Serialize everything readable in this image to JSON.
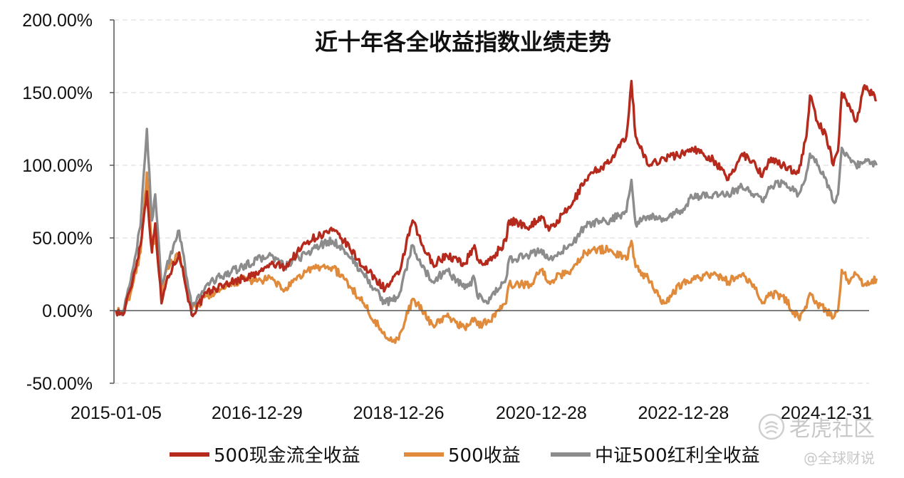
{
  "chart_data": {
    "type": "line",
    "title": "近十年各全收益指数业绩走势",
    "xlabel": "",
    "ylabel": "",
    "x_tick_labels": [
      "2015-01-05",
      "2016-12-29",
      "2018-12-26",
      "2020-12-28",
      "2022-12-28",
      "2024-12-31"
    ],
    "y_tick_labels": [
      "-50.00%",
      "0.00%",
      "50.00%",
      "100.00%",
      "150.00%",
      "200.00%"
    ],
    "ylim": [
      -50,
      200
    ],
    "y_unit": "%",
    "grid": "horizontal dashed",
    "legend_position": "bottom",
    "series": [
      {
        "name": "500现金流全收益",
        "color": "#b52a1c",
        "points": [
          [
            "2015-01-05",
            0
          ],
          [
            "2015-02-10",
            -3
          ],
          [
            "2015-03-20",
            15
          ],
          [
            "2015-05-10",
            45
          ],
          [
            "2015-06-12",
            82
          ],
          [
            "2015-07-08",
            40
          ],
          [
            "2015-07-25",
            60
          ],
          [
            "2015-08-26",
            5
          ],
          [
            "2015-09-20",
            20
          ],
          [
            "2015-11-25",
            40
          ],
          [
            "2016-01-28",
            -3
          ],
          [
            "2016-04-15",
            12
          ],
          [
            "2016-07-15",
            18
          ],
          [
            "2016-10-15",
            22
          ],
          [
            "2016-12-29",
            25
          ],
          [
            "2017-03-10",
            32
          ],
          [
            "2017-05-20",
            30
          ],
          [
            "2017-09-15",
            48
          ],
          [
            "2017-11-20",
            52
          ],
          [
            "2018-01-20",
            55
          ],
          [
            "2018-03-20",
            48
          ],
          [
            "2018-06-30",
            30
          ],
          [
            "2018-10-18",
            15
          ],
          [
            "2018-12-26",
            25
          ],
          [
            "2019-03-08",
            62
          ],
          [
            "2019-04-25",
            45
          ],
          [
            "2019-06-20",
            32
          ],
          [
            "2019-08-30",
            38
          ],
          [
            "2019-11-30",
            32
          ],
          [
            "2020-01-20",
            45
          ],
          [
            "2020-02-03",
            35
          ],
          [
            "2020-03-25",
            32
          ],
          [
            "2020-06-30",
            48
          ],
          [
            "2020-07-15",
            62
          ],
          [
            "2020-10-30",
            58
          ],
          [
            "2020-12-28",
            65
          ],
          [
            "2021-02-05",
            55
          ],
          [
            "2021-05-30",
            72
          ],
          [
            "2021-08-10",
            90
          ],
          [
            "2021-09-15",
            95
          ],
          [
            "2021-12-15",
            102
          ],
          [
            "2022-03-10",
            120
          ],
          [
            "2022-04-05",
            158
          ],
          [
            "2022-04-26",
            120
          ],
          [
            "2022-06-30",
            100
          ],
          [
            "2022-09-20",
            105
          ],
          [
            "2022-12-28",
            108
          ],
          [
            "2023-02-10",
            112
          ],
          [
            "2023-05-30",
            104
          ],
          [
            "2023-08-15",
            90
          ],
          [
            "2023-10-25",
            108
          ],
          [
            "2023-12-30",
            102
          ],
          [
            "2024-02-05",
            92
          ],
          [
            "2024-03-10",
            104
          ],
          [
            "2024-05-20",
            100
          ],
          [
            "2024-08-10",
            95
          ],
          [
            "2024-09-20",
            120
          ],
          [
            "2024-10-08",
            148
          ],
          [
            "2024-11-15",
            130
          ],
          [
            "2024-12-31",
            120
          ],
          [
            "2025-02-05",
            100
          ],
          [
            "2025-03-01",
            110
          ],
          [
            "2025-03-20",
            150
          ],
          [
            "2025-05-01",
            140
          ],
          [
            "2025-06-01",
            130
          ],
          [
            "2025-07-15",
            155
          ],
          [
            "2025-09-15",
            145
          ]
        ]
      },
      {
        "name": "500收益",
        "color": "#e08a3c",
        "points": [
          [
            "2015-01-05",
            0
          ],
          [
            "2015-02-10",
            -3
          ],
          [
            "2015-03-20",
            12
          ],
          [
            "2015-05-10",
            40
          ],
          [
            "2015-06-12",
            95
          ],
          [
            "2015-07-08",
            45
          ],
          [
            "2015-07-25",
            50
          ],
          [
            "2015-08-26",
            10
          ],
          [
            "2015-09-20",
            28
          ],
          [
            "2015-11-25",
            40
          ],
          [
            "2016-01-28",
            0
          ],
          [
            "2016-04-15",
            10
          ],
          [
            "2016-07-15",
            15
          ],
          [
            "2016-10-15",
            22
          ],
          [
            "2016-12-29",
            20
          ],
          [
            "2017-03-10",
            22
          ],
          [
            "2017-05-20",
            14
          ],
          [
            "2017-09-15",
            28
          ],
          [
            "2017-11-20",
            30
          ],
          [
            "2018-01-20",
            30
          ],
          [
            "2018-03-20",
            22
          ],
          [
            "2018-06-30",
            5
          ],
          [
            "2018-10-18",
            -18
          ],
          [
            "2018-12-26",
            -20
          ],
          [
            "2019-03-08",
            8
          ],
          [
            "2019-04-25",
            0
          ],
          [
            "2019-06-20",
            -10
          ],
          [
            "2019-08-30",
            -4
          ],
          [
            "2019-11-30",
            -12
          ],
          [
            "2020-01-20",
            -5
          ],
          [
            "2020-02-03",
            -10
          ],
          [
            "2020-03-25",
            -8
          ],
          [
            "2020-06-30",
            5
          ],
          [
            "2020-07-15",
            18
          ],
          [
            "2020-10-30",
            18
          ],
          [
            "2020-12-28",
            28
          ],
          [
            "2021-02-05",
            20
          ],
          [
            "2021-05-30",
            28
          ],
          [
            "2021-08-10",
            40
          ],
          [
            "2021-09-15",
            42
          ],
          [
            "2021-12-15",
            42
          ],
          [
            "2022-03-10",
            35
          ],
          [
            "2022-04-05",
            48
          ],
          [
            "2022-04-26",
            30
          ],
          [
            "2022-06-30",
            22
          ],
          [
            "2022-09-20",
            5
          ],
          [
            "2022-12-28",
            20
          ],
          [
            "2023-02-10",
            22
          ],
          [
            "2023-05-30",
            25
          ],
          [
            "2023-08-15",
            20
          ],
          [
            "2023-10-25",
            25
          ],
          [
            "2023-12-30",
            15
          ],
          [
            "2024-02-05",
            5
          ],
          [
            "2024-03-10",
            12
          ],
          [
            "2024-05-20",
            10
          ],
          [
            "2024-08-10",
            -5
          ],
          [
            "2024-09-20",
            2
          ],
          [
            "2024-10-08",
            12
          ],
          [
            "2024-11-15",
            5
          ],
          [
            "2024-12-31",
            0
          ],
          [
            "2025-02-05",
            -5
          ],
          [
            "2025-03-01",
            0
          ],
          [
            "2025-03-20",
            28
          ],
          [
            "2025-05-01",
            20
          ],
          [
            "2025-06-01",
            25
          ],
          [
            "2025-07-15",
            18
          ],
          [
            "2025-09-15",
            22
          ]
        ]
      },
      {
        "name": "中证500红利全收益",
        "color": "#8c8c8c",
        "points": [
          [
            "2015-01-05",
            0
          ],
          [
            "2015-02-10",
            -2
          ],
          [
            "2015-03-20",
            20
          ],
          [
            "2015-05-10",
            58
          ],
          [
            "2015-06-12",
            125
          ],
          [
            "2015-07-08",
            62
          ],
          [
            "2015-07-25",
            80
          ],
          [
            "2015-08-26",
            18
          ],
          [
            "2015-09-20",
            30
          ],
          [
            "2015-11-25",
            55
          ],
          [
            "2016-01-28",
            2
          ],
          [
            "2016-04-15",
            18
          ],
          [
            "2016-07-15",
            25
          ],
          [
            "2016-10-15",
            30
          ],
          [
            "2016-12-29",
            35
          ],
          [
            "2017-03-10",
            38
          ],
          [
            "2017-05-20",
            30
          ],
          [
            "2017-09-15",
            40
          ],
          [
            "2017-11-20",
            45
          ],
          [
            "2018-01-20",
            48
          ],
          [
            "2018-03-20",
            42
          ],
          [
            "2018-06-30",
            25
          ],
          [
            "2018-10-18",
            5
          ],
          [
            "2018-12-26",
            10
          ],
          [
            "2019-03-08",
            45
          ],
          [
            "2019-04-25",
            30
          ],
          [
            "2019-06-20",
            20
          ],
          [
            "2019-08-30",
            28
          ],
          [
            "2019-11-30",
            15
          ],
          [
            "2020-01-20",
            22
          ],
          [
            "2020-02-03",
            10
          ],
          [
            "2020-03-25",
            5
          ],
          [
            "2020-06-30",
            22
          ],
          [
            "2020-07-15",
            35
          ],
          [
            "2020-10-30",
            38
          ],
          [
            "2020-12-28",
            42
          ],
          [
            "2021-02-05",
            35
          ],
          [
            "2021-05-30",
            45
          ],
          [
            "2021-08-10",
            58
          ],
          [
            "2021-09-15",
            60
          ],
          [
            "2021-12-15",
            62
          ],
          [
            "2022-03-10",
            68
          ],
          [
            "2022-04-05",
            90
          ],
          [
            "2022-04-26",
            60
          ],
          [
            "2022-06-30",
            65
          ],
          [
            "2022-09-20",
            62
          ],
          [
            "2022-12-28",
            70
          ],
          [
            "2023-02-10",
            78
          ],
          [
            "2023-05-30",
            80
          ],
          [
            "2023-08-15",
            80
          ],
          [
            "2023-10-25",
            85
          ],
          [
            "2023-12-30",
            80
          ],
          [
            "2024-02-05",
            75
          ],
          [
            "2024-03-10",
            85
          ],
          [
            "2024-05-20",
            88
          ],
          [
            "2024-08-10",
            80
          ],
          [
            "2024-09-20",
            95
          ],
          [
            "2024-10-08",
            108
          ],
          [
            "2024-11-15",
            100
          ],
          [
            "2024-12-31",
            90
          ],
          [
            "2025-02-05",
            75
          ],
          [
            "2025-03-01",
            80
          ],
          [
            "2025-03-20",
            112
          ],
          [
            "2025-05-01",
            105
          ],
          [
            "2025-06-01",
            100
          ],
          [
            "2025-07-15",
            102
          ],
          [
            "2025-09-15",
            100
          ]
        ]
      }
    ]
  },
  "watermark": {
    "tiger_community": "老虎社区",
    "global_finance": "@全球财说"
  }
}
